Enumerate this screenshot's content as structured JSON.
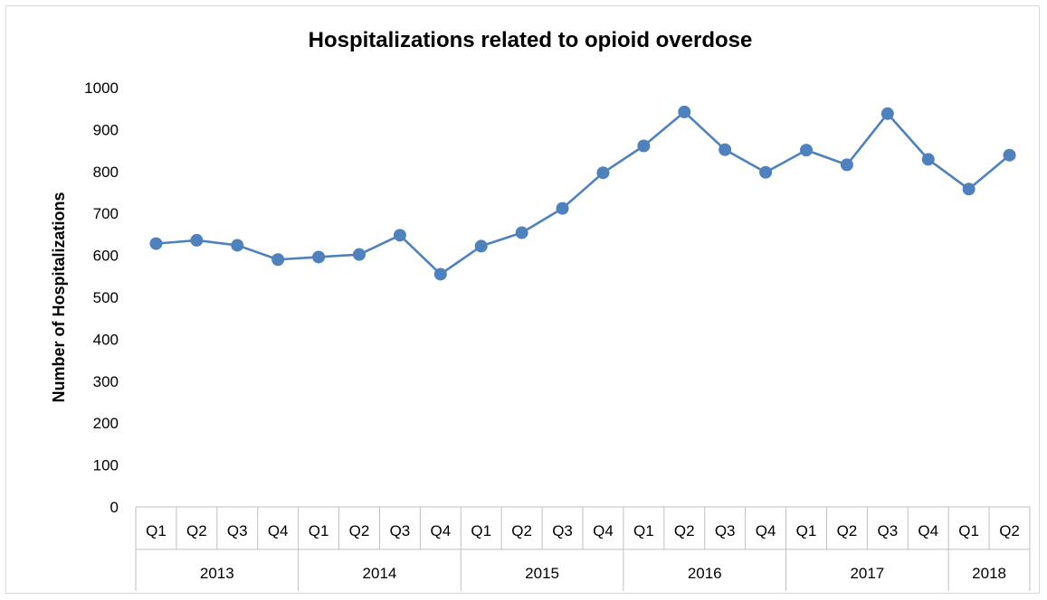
{
  "chart_data": {
    "type": "line",
    "title": "Hospitalizations related to opioid overdose",
    "xlabel": "",
    "ylabel": "Number of Hospitalizations",
    "ylim": [
      0,
      1000
    ],
    "yticks": [
      0,
      100,
      200,
      300,
      400,
      500,
      600,
      700,
      800,
      900,
      1000
    ],
    "grid": false,
    "legend": "none",
    "years": [
      {
        "label": "2013",
        "count": 4
      },
      {
        "label": "2014",
        "count": 4
      },
      {
        "label": "2015",
        "count": 4
      },
      {
        "label": "2016",
        "count": 4
      },
      {
        "label": "2017",
        "count": 4
      },
      {
        "label": "2018",
        "count": 2
      }
    ],
    "categories": [
      "Q1",
      "Q2",
      "Q3",
      "Q4",
      "Q1",
      "Q2",
      "Q3",
      "Q4",
      "Q1",
      "Q2",
      "Q3",
      "Q4",
      "Q1",
      "Q2",
      "Q3",
      "Q4",
      "Q1",
      "Q2",
      "Q3",
      "Q4",
      "Q1",
      "Q2"
    ],
    "series": [
      {
        "values": [
          628,
          636,
          624,
          590,
          596,
          602,
          648,
          555,
          622,
          654,
          712,
          797,
          861,
          942,
          852,
          798,
          851,
          816,
          938,
          829,
          758,
          839
        ],
        "color": "#4f81bd"
      }
    ]
  }
}
